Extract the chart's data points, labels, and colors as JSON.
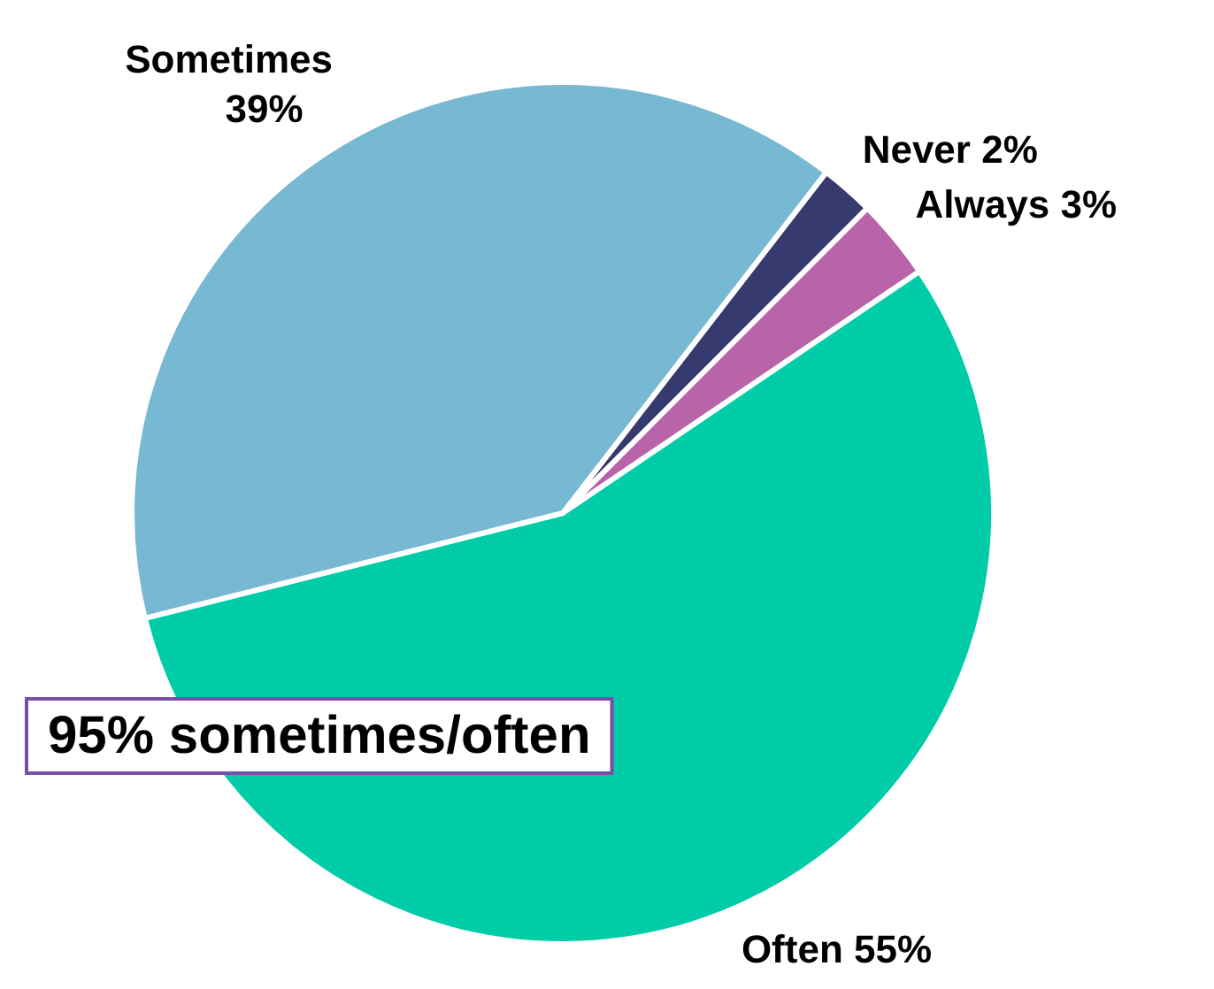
{
  "chart_data": {
    "type": "pie",
    "categories": [
      "Never",
      "Always",
      "Often",
      "Sometimes"
    ],
    "values": [
      2,
      3,
      55,
      39
    ],
    "value_labels": [
      "2%",
      "3%",
      "55%",
      "39%"
    ],
    "colors": [
      "#363a6e",
      "#b963a8",
      "#00cda8",
      "#77b8d2"
    ],
    "annotations": [
      "95% sometimes/often"
    ],
    "legend": false
  }
}
